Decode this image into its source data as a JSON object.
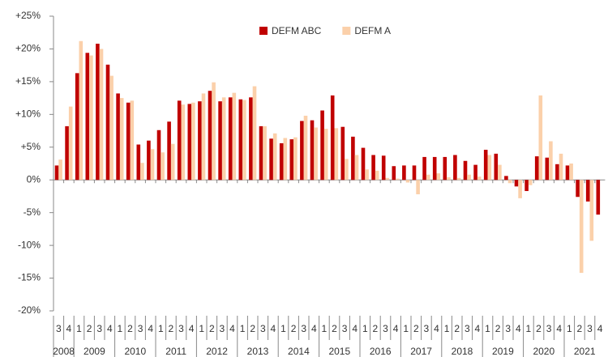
{
  "chart_data": {
    "type": "bar",
    "categories": [
      "3",
      "4",
      "1",
      "2",
      "3",
      "4",
      "1",
      "2",
      "3",
      "4",
      "1",
      "2",
      "3",
      "4",
      "1",
      "2",
      "3",
      "4",
      "1",
      "2",
      "3",
      "4",
      "1",
      "2",
      "3",
      "4",
      "1",
      "2",
      "3",
      "4",
      "1",
      "2",
      "3",
      "4",
      "1",
      "2",
      "3",
      "4",
      "1",
      "2",
      "3",
      "4",
      "1",
      "2",
      "3",
      "4",
      "1",
      "2",
      "3",
      "4",
      "1",
      "2",
      "3",
      "4"
    ],
    "years": [
      "2008",
      "2009",
      "2010",
      "2011",
      "2012",
      "2013",
      "2014",
      "2015",
      "2016",
      "2017",
      "2018",
      "2019",
      "2020",
      "2021"
    ],
    "series": [
      {
        "name": "DEFM ABC",
        "color": "#c00000",
        "values": [
          2.2,
          8.2,
          16.3,
          19.4,
          20.8,
          17.6,
          13.2,
          11.8,
          5.4,
          6.0,
          7.6,
          8.9,
          12.1,
          11.6,
          12.0,
          13.6,
          12.0,
          12.6,
          12.3,
          12.6,
          8.2,
          6.3,
          5.6,
          6.2,
          9.0,
          9.1,
          10.6,
          12.9,
          8.1,
          6.6,
          4.9,
          3.8,
          3.7,
          2.1,
          2.2,
          2.2,
          3.5,
          3.5,
          3.5,
          3.8,
          2.9,
          2.3,
          4.6,
          4.0,
          0.6,
          -1.0,
          -1.7,
          3.6,
          3.4,
          2.4,
          2.2,
          -2.6,
          -3.3,
          -5.3
        ]
      },
      {
        "name": "DEFM A",
        "color": "#fbd0aa",
        "values": [
          3.1,
          11.2,
          21.2,
          19.0,
          20.0,
          15.9,
          12.5,
          12.1,
          2.6,
          4.7,
          4.2,
          5.5,
          11.5,
          11.8,
          13.2,
          14.9,
          12.6,
          13.3,
          12.2,
          14.3,
          8.2,
          7.1,
          6.4,
          6.5,
          9.8,
          8.0,
          7.8,
          7.9,
          3.2,
          3.8,
          1.6,
          1.4,
          0.3,
          0.2,
          -0.4,
          -2.2,
          0.8,
          1.0,
          0.4,
          0.3,
          0.8,
          0.5,
          3.8,
          2.3,
          -0.5,
          -2.8,
          -0.8,
          12.9,
          5.9,
          4.0,
          2.5,
          -14.2,
          -9.3,
          null
        ]
      }
    ],
    "ylim": [
      -20,
      25
    ],
    "yticks": [
      {
        "value": -20,
        "label": "-20%"
      },
      {
        "value": -15,
        "label": "-15%"
      },
      {
        "value": -10,
        "label": "-10%"
      },
      {
        "value": -5,
        "label": "-5%"
      },
      {
        "value": 0,
        "label": "0%"
      },
      {
        "value": 5,
        "label": "+5%"
      },
      {
        "value": 10,
        "label": "+10%"
      },
      {
        "value": 15,
        "label": "+15%"
      },
      {
        "value": 20,
        "label": "+20%"
      },
      {
        "value": 25,
        "label": "+25%"
      }
    ],
    "legend": "top"
  }
}
